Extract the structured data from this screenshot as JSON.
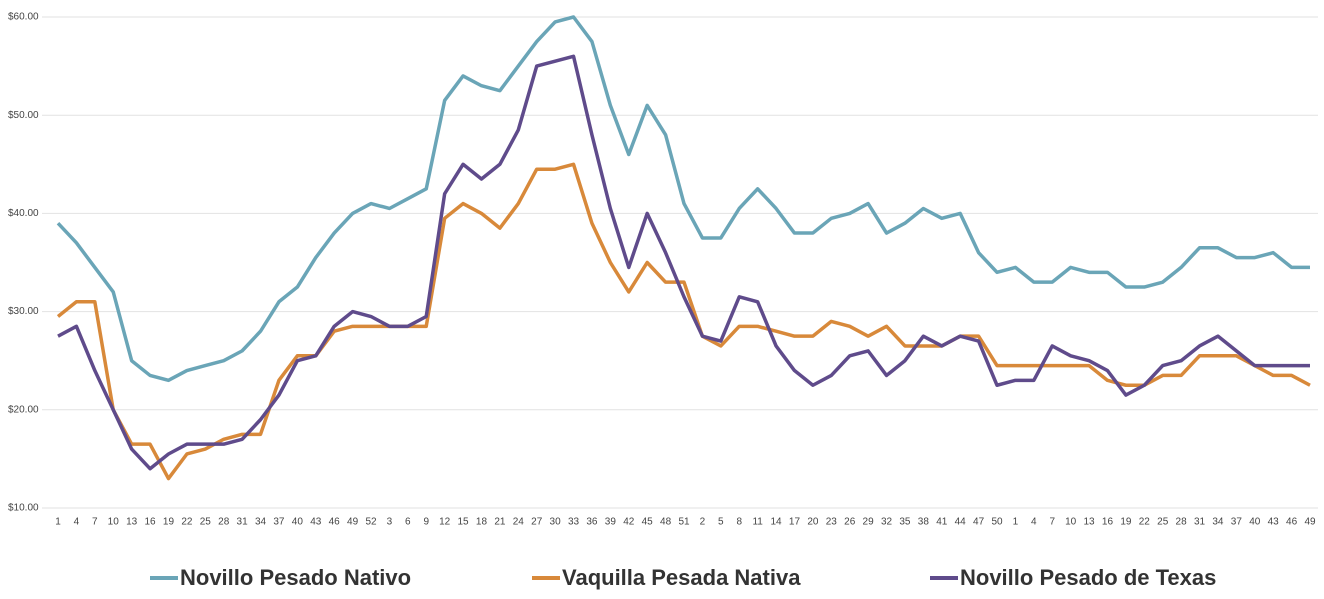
{
  "chart_data": {
    "type": "line",
    "categories": [
      "1",
      "4",
      "7",
      "10",
      "13",
      "16",
      "19",
      "22",
      "25",
      "28",
      "31",
      "34",
      "37",
      "40",
      "43",
      "46",
      "49",
      "52",
      "3",
      "6",
      "9",
      "12",
      "15",
      "18",
      "21",
      "24",
      "27",
      "30",
      "33",
      "36",
      "39",
      "42",
      "45",
      "48",
      "51",
      "2",
      "5",
      "8",
      "11",
      "14",
      "17",
      "20",
      "23",
      "26",
      "29",
      "32",
      "35",
      "38",
      "41",
      "44",
      "47",
      "50",
      "1",
      "4",
      "7",
      "10",
      "13",
      "16",
      "19",
      "22",
      "25",
      "28",
      "31",
      "34",
      "37",
      "40",
      "43",
      "46",
      "49"
    ],
    "series": [
      {
        "name": "Novillo Pesado Nativo",
        "color": "#6aa5b7",
        "values": [
          39,
          37,
          34.5,
          32,
          25,
          23.5,
          23,
          24,
          24.5,
          25,
          26,
          28,
          31,
          32.5,
          35.5,
          38,
          40,
          41,
          40.5,
          41.5,
          42.5,
          51.5,
          54,
          53,
          52.5,
          55,
          57.5,
          59.5,
          60,
          57.5,
          51,
          46,
          51,
          48,
          41,
          37.5,
          37.5,
          40.5,
          42.5,
          40.5,
          38,
          38,
          39.5,
          40,
          41,
          38,
          39,
          40.5,
          39.5,
          40,
          36,
          34,
          34.5,
          33,
          33,
          34.5,
          34,
          34,
          32.5,
          32.5,
          33,
          34.5,
          36.5,
          36.5,
          35.5,
          35.5,
          36,
          34.5,
          34.5
        ]
      },
      {
        "name": "Vaquilla Pesada Nativa",
        "color": "#d8893a",
        "values": [
          29.5,
          31,
          31,
          20,
          16.5,
          16.5,
          13,
          15.5,
          16,
          17,
          17.5,
          17.5,
          23,
          25.5,
          25.5,
          28,
          28.5,
          28.5,
          28.5,
          28.5,
          28.5,
          39.5,
          41,
          40,
          38.5,
          41,
          44.5,
          44.5,
          45,
          39,
          35,
          32,
          35,
          33,
          33,
          27.5,
          26.5,
          28.5,
          28.5,
          28,
          27.5,
          27.5,
          29,
          28.5,
          27.5,
          28.5,
          26.5,
          26.5,
          26.5,
          27.5,
          27.5,
          24.5,
          24.5,
          24.5,
          24.5,
          24.5,
          24.5,
          23,
          22.5,
          22.5,
          23.5,
          23.5,
          25.5,
          25.5,
          25.5,
          24.5,
          23.5,
          23.5,
          22.5
        ]
      },
      {
        "name": "Novillo Pesado de Texas",
        "color": "#5f4b8b",
        "values": [
          27.5,
          28.5,
          24,
          20,
          16,
          14,
          15.5,
          16.5,
          16.5,
          16.5,
          17,
          19,
          21.5,
          25,
          25.5,
          28.5,
          30,
          29.5,
          28.5,
          28.5,
          29.5,
          42,
          45,
          43.5,
          45,
          48.5,
          55,
          55.5,
          56,
          48,
          40.5,
          34.5,
          40,
          36,
          31.5,
          27.5,
          27,
          31.5,
          31,
          26.5,
          24,
          22.5,
          23.5,
          25.5,
          26,
          23.5,
          25,
          27.5,
          26.5,
          27.5,
          27,
          22.5,
          23,
          23,
          26.5,
          25.5,
          25,
          24,
          21.5,
          22.5,
          24.5,
          25,
          26.5,
          27.5,
          26,
          24.5,
          24.5,
          24.5,
          24.5
        ]
      }
    ],
    "ylim": [
      10,
      60
    ],
    "yticks": [
      {
        "value": 10,
        "label": "$10.00"
      },
      {
        "value": 20,
        "label": "$20.00"
      },
      {
        "value": 30,
        "label": "$30.00"
      },
      {
        "value": 40,
        "label": "$40.00"
      },
      {
        "value": 50,
        "label": "$50.00"
      },
      {
        "value": 60,
        "label": "$60.00"
      }
    ],
    "grid": true,
    "legend": "bottom"
  }
}
